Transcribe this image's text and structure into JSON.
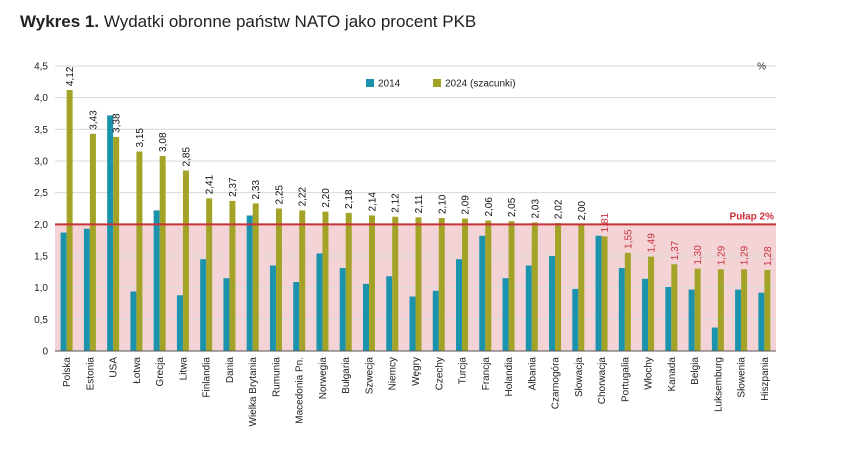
{
  "header": {
    "title_bold": "Wykres 1.",
    "title_rest": "Wydatki obronne państw NATO jako procent PKB"
  },
  "colors": {
    "series_2014": "#1b93ad",
    "series_2024": "#a3a327",
    "threshold": "#c8313a",
    "below_area": "#f4d3d7",
    "label_above": "#111111",
    "label_below": "#c8313a"
  },
  "chart_data": {
    "type": "bar",
    "ylim": [
      0,
      4.5
    ],
    "yticks": [
      "0",
      "0,5",
      "1,0",
      "1,5",
      "2,0",
      "2,5",
      "3,0",
      "3,5",
      "4,0",
      "4,5"
    ],
    "ytick_values": [
      0,
      0.5,
      1.0,
      1.5,
      2.0,
      2.5,
      3.0,
      3.5,
      4.0,
      4.5
    ],
    "unit": "%",
    "threshold": {
      "value": 2.0,
      "label": "Pułap 2%"
    },
    "legend_position": "top-center",
    "categories": [
      "Polska",
      "Estonia",
      "USA",
      "Łotwa",
      "Grecja",
      "Litwa",
      "Finlandia",
      "Dania",
      "Wielka Brytania",
      "Rumunia",
      "Macedonia Pn.",
      "Norwegia",
      "Bułgaria",
      "Szwecja",
      "Niemcy",
      "Węgry",
      "Czechy",
      "Turcja",
      "Francja",
      "Holandia",
      "Albania",
      "Czarnogóra",
      "Słowacja",
      "Chorwacja",
      "Portugalia",
      "Włochy",
      "Kanada",
      "Belgia",
      "Luksemburg",
      "Słowenia",
      "Hiszpania"
    ],
    "series": [
      {
        "name": "2014",
        "values": [
          1.87,
          1.93,
          3.72,
          0.94,
          2.22,
          0.88,
          1.45,
          1.15,
          2.14,
          1.35,
          1.09,
          1.54,
          1.31,
          1.06,
          1.18,
          0.86,
          0.95,
          1.45,
          1.82,
          1.15,
          1.35,
          1.5,
          0.98,
          1.82,
          1.31,
          1.14,
          1.01,
          0.97,
          0.37,
          0.97,
          0.92
        ]
      },
      {
        "name": "2024 (szacunki)",
        "values": [
          4.12,
          3.43,
          3.38,
          3.15,
          3.08,
          2.85,
          2.41,
          2.37,
          2.33,
          2.25,
          2.22,
          2.2,
          2.18,
          2.14,
          2.12,
          2.11,
          2.1,
          2.09,
          2.06,
          2.05,
          2.03,
          2.02,
          2.0,
          1.81,
          1.55,
          1.49,
          1.37,
          1.3,
          1.29,
          1.29,
          1.28
        ],
        "labels": [
          "4,12",
          "3,43",
          "3,38",
          "3,15",
          "3,08",
          "2,85",
          "2,41",
          "2,37",
          "2,33",
          "2,25",
          "2,22",
          "2,20",
          "2,18",
          "2,14",
          "2,12",
          "2,11",
          "2,10",
          "2,09",
          "2,06",
          "2,05",
          "2,03",
          "2,02",
          "2,00",
          "1,81",
          "1,55",
          "1,49",
          "1,37",
          "1,30",
          "1,29",
          "1,29",
          "1,28"
        ]
      }
    ]
  }
}
